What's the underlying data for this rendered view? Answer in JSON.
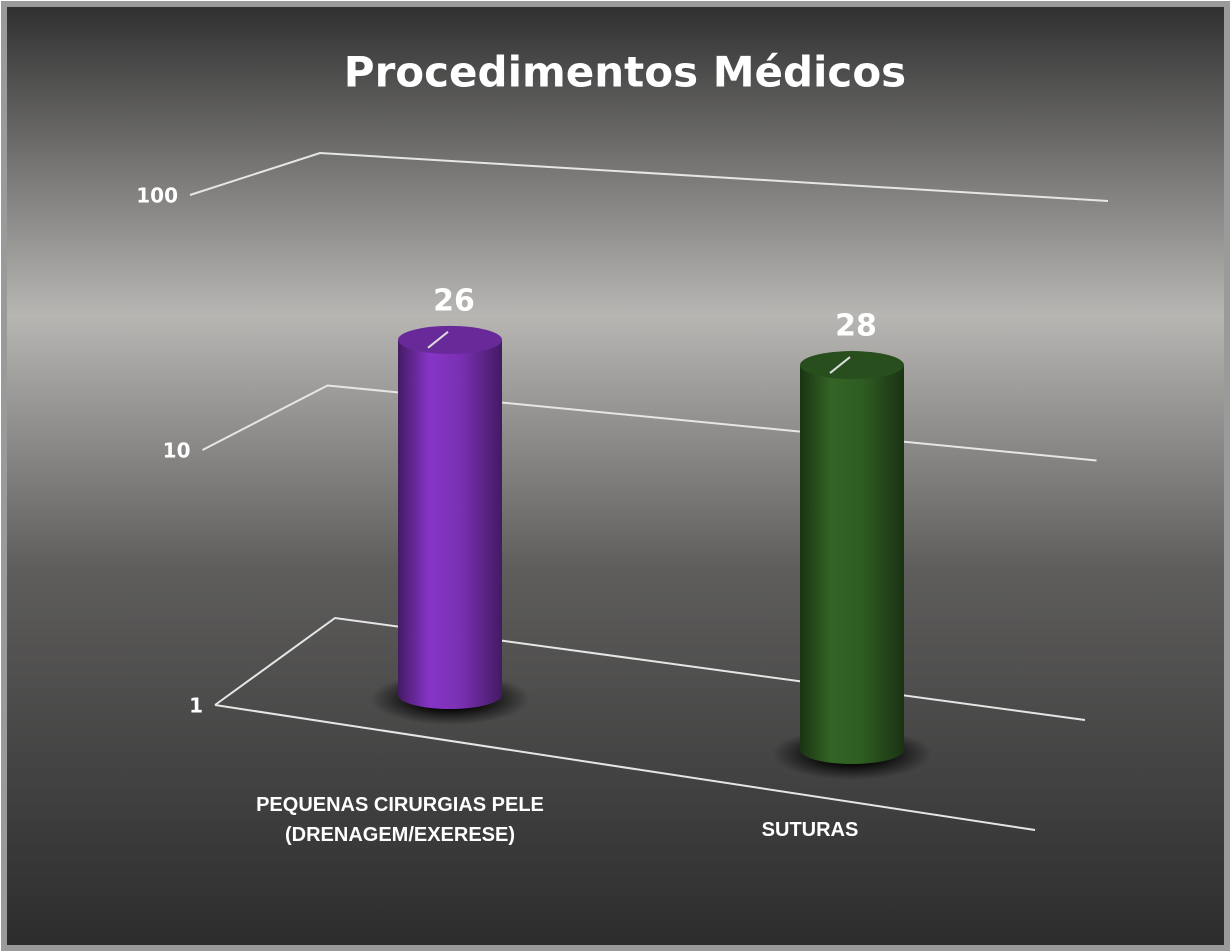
{
  "chart_data": {
    "type": "bar3d",
    "title": "Procedimentos Médicos",
    "categories": [
      "PEQUENAS CIRURGIAS PELE\n(DRENAGEM/EXERESE)",
      "SUTURAS"
    ],
    "values": [
      26,
      28
    ],
    "colors": [
      "#7a30b4",
      "#2f5c22"
    ],
    "ylim": [
      1,
      100
    ],
    "yticks": [
      1,
      10,
      100
    ],
    "log_scale": true,
    "grid": true
  }
}
